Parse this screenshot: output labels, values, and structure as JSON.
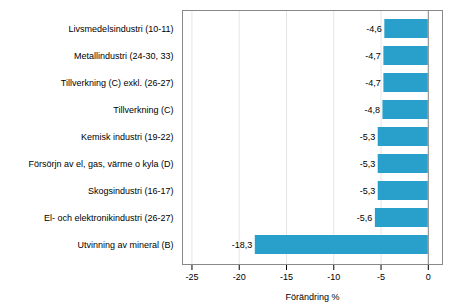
{
  "chart_data": {
    "type": "bar",
    "orientation": "horizontal",
    "categories": [
      "Utvinning av mineral (B)",
      "El- och elektronikindustri (26-27)",
      "Skogsindustri (16-17)",
      "Försörjn av el, gas, värme o kyla (D)",
      "Kemisk industri (19-22)",
      "Tillverkning (C)",
      "Tillverkning (C) exkl. (26-27)",
      "Metallindustri (24-30, 33)",
      "Livsmedelsindustri (10-11)"
    ],
    "values": [
      -18.3,
      -5.6,
      -5.3,
      -5.3,
      -5.3,
      -4.8,
      -4.7,
      -4.7,
      -4.6
    ],
    "value_labels": [
      "-18,3",
      "-5,6",
      "-5,3",
      "-5,3",
      "-5,3",
      "-4,8",
      "-4,7",
      "-4,7",
      "-4,6"
    ],
    "data_labels": true,
    "color": "#29a0cc",
    "xlabel": "Förändring %",
    "xlim": [
      -26,
      1.5
    ],
    "xticks": [
      -25,
      -20,
      -15,
      -10,
      -5,
      0
    ],
    "grid": true
  }
}
